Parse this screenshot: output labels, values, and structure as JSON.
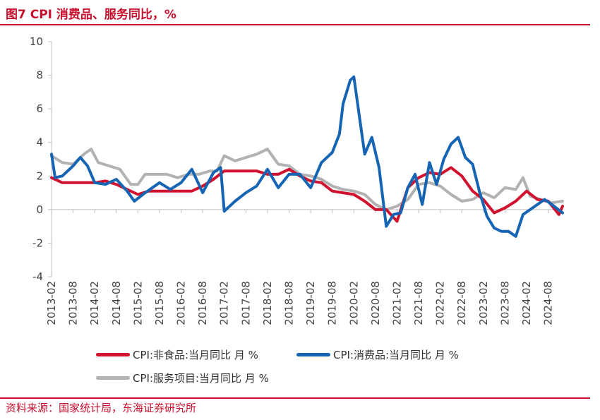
{
  "header": {
    "title": "图7  CPI 消费品、服务同比，%"
  },
  "footer": {
    "source": "资料来源：国家统计局，东海证券研究所"
  },
  "colors": {
    "brand": "#c8102e",
    "axis": "#bfbfbf"
  },
  "chart_data": {
    "type": "line",
    "ylim": [
      -4,
      10
    ],
    "yticks": [
      10,
      8,
      6,
      4,
      2,
      0,
      -2,
      -4
    ],
    "xticks": [
      "2013-02",
      "2013-08",
      "2014-02",
      "2014-08",
      "2015-02",
      "2015-08",
      "2016-02",
      "2016-08",
      "2017-02",
      "2017-08",
      "2018-02",
      "2018-08",
      "2019-02",
      "2019-08",
      "2020-02",
      "2020-08",
      "2021-02",
      "2021-08",
      "2022-02",
      "2022-08",
      "2023-02",
      "2023-08",
      "2024-02",
      "2024-08"
    ],
    "x_start": "2013-02",
    "x_end": "2024-12",
    "legend_position": "bottom",
    "series": [
      {
        "name": "CPI:非食品:当月同比 月 %",
        "color": "#d0122f",
        "points": [
          [
            "2013-02",
            1.9
          ],
          [
            "2013-05",
            1.6
          ],
          [
            "2013-08",
            1.6
          ],
          [
            "2013-11",
            1.6
          ],
          [
            "2014-02",
            1.6
          ],
          [
            "2014-05",
            1.7
          ],
          [
            "2014-08",
            1.5
          ],
          [
            "2014-11",
            1.2
          ],
          [
            "2015-02",
            0.9
          ],
          [
            "2015-05",
            1.1
          ],
          [
            "2015-08",
            1.1
          ],
          [
            "2015-11",
            1.1
          ],
          [
            "2016-02",
            1.1
          ],
          [
            "2016-05",
            1.1
          ],
          [
            "2016-08",
            1.4
          ],
          [
            "2016-11",
            1.8
          ],
          [
            "2017-02",
            2.3
          ],
          [
            "2017-05",
            2.3
          ],
          [
            "2017-08",
            2.3
          ],
          [
            "2017-11",
            2.3
          ],
          [
            "2018-02",
            2.1
          ],
          [
            "2018-05",
            2.1
          ],
          [
            "2018-08",
            2.4
          ],
          [
            "2018-11",
            2.0
          ],
          [
            "2019-02",
            1.7
          ],
          [
            "2019-05",
            1.6
          ],
          [
            "2019-08",
            1.1
          ],
          [
            "2019-11",
            1.0
          ],
          [
            "2020-02",
            0.9
          ],
          [
            "2020-05",
            0.5
          ],
          [
            "2020-08",
            0.0
          ],
          [
            "2020-11",
            0.0
          ],
          [
            "2021-02",
            -0.7
          ],
          [
            "2021-05",
            1.3
          ],
          [
            "2021-08",
            1.9
          ],
          [
            "2021-11",
            2.2
          ],
          [
            "2022-02",
            2.1
          ],
          [
            "2022-05",
            2.5
          ],
          [
            "2022-08",
            2.0
          ],
          [
            "2022-11",
            1.1
          ],
          [
            "2023-02",
            0.6
          ],
          [
            "2023-05",
            -0.2
          ],
          [
            "2023-08",
            0.1
          ],
          [
            "2023-11",
            0.5
          ],
          [
            "2024-02",
            1.1
          ],
          [
            "2024-05",
            0.6
          ],
          [
            "2024-08",
            0.5
          ],
          [
            "2024-11",
            -0.3
          ],
          [
            "2024-12",
            0.2
          ]
        ]
      },
      {
        "name": "CPI:消费品:当月同比 月 %",
        "color": "#1565b4",
        "points": [
          [
            "2013-02",
            3.3
          ],
          [
            "2013-03",
            1.9
          ],
          [
            "2013-05",
            2.0
          ],
          [
            "2013-08",
            2.6
          ],
          [
            "2013-10",
            3.1
          ],
          [
            "2013-12",
            2.6
          ],
          [
            "2014-02",
            1.6
          ],
          [
            "2014-05",
            1.5
          ],
          [
            "2014-08",
            1.8
          ],
          [
            "2014-11",
            1.1
          ],
          [
            "2015-01",
            0.5
          ],
          [
            "2015-04",
            1.0
          ],
          [
            "2015-08",
            1.6
          ],
          [
            "2015-11",
            1.2
          ],
          [
            "2016-02",
            1.6
          ],
          [
            "2016-05",
            2.4
          ],
          [
            "2016-08",
            1.0
          ],
          [
            "2016-11",
            2.2
          ],
          [
            "2017-01",
            2.5
          ],
          [
            "2017-02",
            -0.1
          ],
          [
            "2017-05",
            0.5
          ],
          [
            "2017-08",
            1.0
          ],
          [
            "2017-11",
            1.4
          ],
          [
            "2018-02",
            2.4
          ],
          [
            "2018-05",
            1.3
          ],
          [
            "2018-08",
            2.1
          ],
          [
            "2018-11",
            2.1
          ],
          [
            "2019-02",
            1.3
          ],
          [
            "2019-05",
            2.8
          ],
          [
            "2019-08",
            3.4
          ],
          [
            "2019-10",
            4.5
          ],
          [
            "2019-11",
            6.3
          ],
          [
            "2020-01",
            7.7
          ],
          [
            "2020-02",
            7.9
          ],
          [
            "2020-05",
            3.3
          ],
          [
            "2020-07",
            4.3
          ],
          [
            "2020-09",
            2.5
          ],
          [
            "2020-11",
            -1.0
          ],
          [
            "2021-01",
            -0.3
          ],
          [
            "2021-03",
            -0.2
          ],
          [
            "2021-05",
            1.3
          ],
          [
            "2021-07",
            2.1
          ],
          [
            "2021-09",
            0.3
          ],
          [
            "2021-11",
            2.8
          ],
          [
            "2022-01",
            1.5
          ],
          [
            "2022-03",
            3.0
          ],
          [
            "2022-05",
            3.9
          ],
          [
            "2022-07",
            4.3
          ],
          [
            "2022-09",
            3.1
          ],
          [
            "2022-11",
            2.7
          ],
          [
            "2023-01",
            1.0
          ],
          [
            "2023-03",
            -0.4
          ],
          [
            "2023-05",
            -1.1
          ],
          [
            "2023-07",
            -1.3
          ],
          [
            "2023-09",
            -1.3
          ],
          [
            "2023-11",
            -1.6
          ],
          [
            "2024-01",
            -0.3
          ],
          [
            "2024-03",
            0.0
          ],
          [
            "2024-05",
            0.3
          ],
          [
            "2024-07",
            0.6
          ],
          [
            "2024-09",
            0.3
          ],
          [
            "2024-12",
            -0.2
          ]
        ]
      },
      {
        "name": "CPI:服务项目:当月同比 月 %",
        "color": "#b2b2b2",
        "points": [
          [
            "2013-02",
            3.2
          ],
          [
            "2013-05",
            2.8
          ],
          [
            "2013-08",
            2.7
          ],
          [
            "2013-11",
            3.3
          ],
          [
            "2014-01",
            3.6
          ],
          [
            "2014-03",
            2.8
          ],
          [
            "2014-06",
            2.6
          ],
          [
            "2014-09",
            2.4
          ],
          [
            "2014-12",
            1.5
          ],
          [
            "2015-02",
            1.5
          ],
          [
            "2015-04",
            2.1
          ],
          [
            "2015-07",
            2.1
          ],
          [
            "2015-10",
            2.1
          ],
          [
            "2016-01",
            1.9
          ],
          [
            "2016-04",
            2.1
          ],
          [
            "2016-07",
            2.1
          ],
          [
            "2016-10",
            2.3
          ],
          [
            "2016-12",
            2.3
          ],
          [
            "2017-02",
            3.2
          ],
          [
            "2017-05",
            2.9
          ],
          [
            "2017-08",
            3.1
          ],
          [
            "2017-11",
            3.3
          ],
          [
            "2018-02",
            3.6
          ],
          [
            "2018-05",
            2.7
          ],
          [
            "2018-08",
            2.6
          ],
          [
            "2018-11",
            2.1
          ],
          [
            "2019-02",
            2.0
          ],
          [
            "2019-05",
            1.8
          ],
          [
            "2019-08",
            1.4
          ],
          [
            "2019-11",
            1.2
          ],
          [
            "2020-02",
            1.1
          ],
          [
            "2020-05",
            0.9
          ],
          [
            "2020-08",
            0.3
          ],
          [
            "2020-11",
            0.0
          ],
          [
            "2021-02",
            0.2
          ],
          [
            "2021-05",
            0.6
          ],
          [
            "2021-08",
            1.5
          ],
          [
            "2021-11",
            1.6
          ],
          [
            "2022-02",
            1.4
          ],
          [
            "2022-05",
            0.9
          ],
          [
            "2022-08",
            0.5
          ],
          [
            "2022-11",
            0.6
          ],
          [
            "2023-02",
            1.0
          ],
          [
            "2023-05",
            0.7
          ],
          [
            "2023-08",
            1.3
          ],
          [
            "2023-11",
            1.2
          ],
          [
            "2024-01",
            1.9
          ],
          [
            "2024-03",
            0.8
          ],
          [
            "2024-06",
            0.6
          ],
          [
            "2024-09",
            0.4
          ],
          [
            "2024-12",
            0.5
          ]
        ]
      }
    ]
  }
}
